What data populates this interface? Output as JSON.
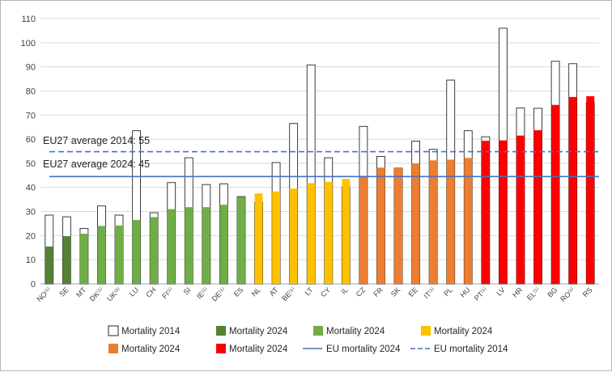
{
  "chart_data": {
    "type": "bar",
    "title": "",
    "xlabel": "",
    "ylabel": "",
    "ylim": [
      0,
      110
    ],
    "yticks": [
      0,
      10,
      20,
      30,
      40,
      50,
      60,
      70,
      80,
      90,
      100,
      110
    ],
    "grid": true,
    "categories": [
      "NO⁽¹⁾",
      "SE",
      "MT",
      "DK⁽¹⁾",
      "UK⁽²⁾",
      "LU",
      "CH",
      "FI⁽¹⁾",
      "SI",
      "IE⁽¹⁾",
      "DE⁽¹⁾",
      "ES",
      "NL",
      "AT",
      "BE⁽¹⁾",
      "LT",
      "CY",
      "IL",
      "CZ",
      "FR",
      "SK",
      "EE",
      "IT⁽¹⁾",
      "PL",
      "HU",
      "PT⁽¹⁾",
      "LV",
      "HR",
      "EL⁽¹⁾",
      "BG",
      "RO⁽¹⁾",
      "RS"
    ],
    "series": [
      {
        "name": "Mortality 2014",
        "style": "outline",
        "values": [
          28.5,
          27.8,
          23,
          32.3,
          28.5,
          63.5,
          29.5,
          42,
          52.3,
          41.2,
          41.5,
          36.2,
          33.8,
          50.3,
          66.5,
          90.8,
          52.3,
          40.2,
          65.3,
          52.8,
          48,
          59.2,
          55.8,
          84.5,
          63.5,
          61,
          106,
          73,
          72.8,
          92.3,
          91.3,
          75.2
        ]
      },
      {
        "name": "Mortality 2024",
        "values": [
          15.5,
          19.8,
          20.8,
          24,
          24.2,
          26.5,
          27.7,
          31,
          31.8,
          31.8,
          32.8,
          36,
          37.5,
          38.3,
          39.5,
          41.8,
          42.3,
          43.5,
          44.8,
          48.2,
          48.3,
          50,
          51.2,
          51.5,
          52.2,
          59.3,
          59.5,
          61.5,
          63.7,
          74.2,
          77.5,
          77.8
        ]
      }
    ],
    "group_colors": {
      "dark_green": "#548235",
      "green": "#70ad47",
      "yellow": "#ffc000",
      "orange": "#ed7d31",
      "red": "#ff0000"
    },
    "bar_groups": [
      "dark_green",
      "dark_green",
      "green",
      "green",
      "green",
      "green",
      "green",
      "green",
      "green",
      "green",
      "green",
      "green",
      "yellow",
      "yellow",
      "yellow",
      "yellow",
      "yellow",
      "yellow",
      "orange",
      "orange",
      "orange",
      "orange",
      "orange",
      "orange",
      "orange",
      "red",
      "red",
      "red",
      "red",
      "red",
      "red",
      "red"
    ],
    "eu_mortality_2024": 44.5,
    "eu_mortality_2014": 54.8,
    "annotations": {
      "avg_2014": "EU27 average 2014: 55",
      "avg_2024": "EU27 average 2024: 45"
    },
    "line_color": "#4472c4",
    "legend_position": "bottom",
    "legend": [
      {
        "label": "Mortality 2014",
        "kind": "outline"
      },
      {
        "label": "Mortality 2024",
        "kind": "dark_green"
      },
      {
        "label": "Mortality 2024",
        "kind": "green"
      },
      {
        "label": "Mortality 2024",
        "kind": "yellow"
      },
      {
        "label": "Mortality 2024",
        "kind": "orange"
      },
      {
        "label": "Mortality 2024",
        "kind": "red"
      },
      {
        "label": "EU mortality 2024",
        "kind": "solid-line"
      },
      {
        "label": "EU mortality 2014",
        "kind": "dashed-line"
      }
    ]
  }
}
